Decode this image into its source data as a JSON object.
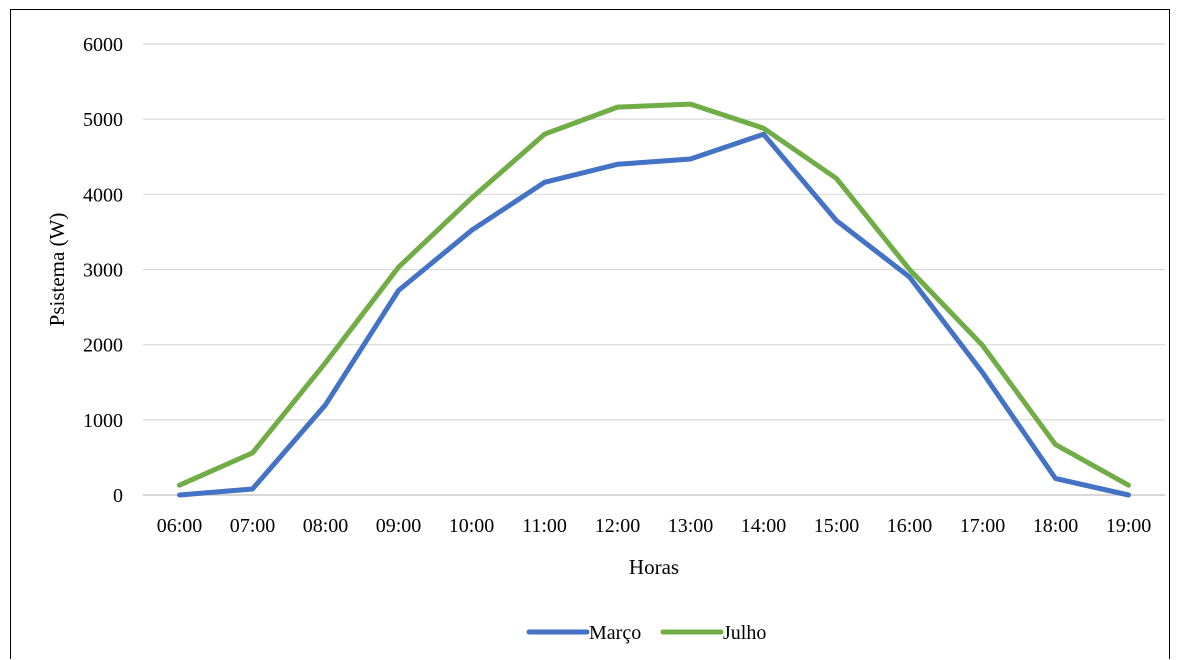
{
  "chart_data": {
    "type": "line",
    "title": "",
    "xlabel": "Horas",
    "ylabel": "Psistema (W)",
    "categories": [
      "06:00",
      "07:00",
      "08:00",
      "09:00",
      "10:00",
      "11:00",
      "12:00",
      "13:00",
      "14:00",
      "15:00",
      "16:00",
      "17:00",
      "18:00",
      "19:00"
    ],
    "ylim": [
      0,
      6000
    ],
    "yticks": [
      0,
      1000,
      2000,
      3000,
      4000,
      5000,
      6000
    ],
    "grid": true,
    "legend_position": "bottom",
    "series": [
      {
        "name": "Março",
        "color": "#4472c4",
        "values": [
          0,
          80,
          1200,
          2720,
          3520,
          4160,
          4400,
          4470,
          4800,
          3650,
          2900,
          1630,
          220,
          0
        ]
      },
      {
        "name": "Julho",
        "color": "#70ad47",
        "values": [
          130,
          560,
          1760,
          3030,
          3950,
          4800,
          5160,
          5200,
          4880,
          4210,
          3000,
          1990,
          670,
          130
        ]
      }
    ]
  }
}
